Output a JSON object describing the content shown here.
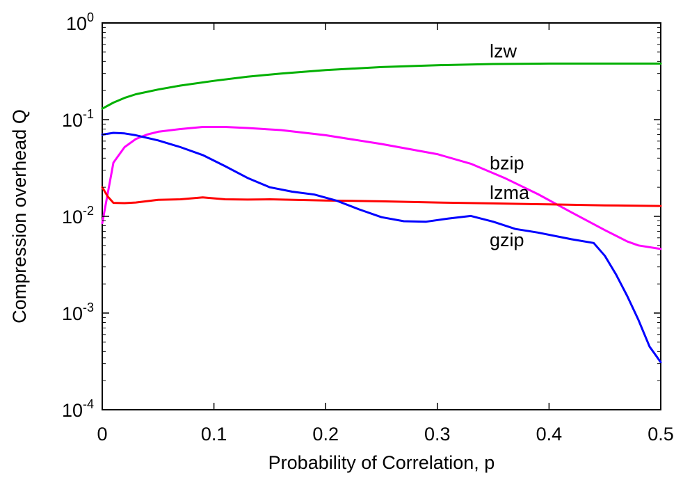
{
  "chart_data": {
    "type": "line",
    "xlabel": "Probability of Correlation, p",
    "ylabel": "Compression overhead Q",
    "xlim": [
      0,
      0.5
    ],
    "ylim": [
      0.0001,
      1
    ],
    "yscale": "log",
    "grid": false,
    "legend": "none",
    "x_ticks": [
      "0",
      "0.1",
      "0.2",
      "0.3",
      "0.4",
      "0.5"
    ],
    "x_tick_values": [
      0,
      0.1,
      0.2,
      0.3,
      0.4,
      0.5
    ],
    "y_ticks": [
      {
        "base": "10",
        "exp": "-4"
      },
      {
        "base": "10",
        "exp": "-3"
      },
      {
        "base": "10",
        "exp": "-2"
      },
      {
        "base": "10",
        "exp": "-1"
      },
      {
        "base": "10",
        "exp": "0"
      }
    ],
    "y_tick_values": [
      0.0001,
      0.001,
      0.01,
      0.1,
      1
    ],
    "series": [
      {
        "name": "lzw",
        "color": "#00b000",
        "x": [
          0,
          0.01,
          0.02,
          0.03,
          0.05,
          0.07,
          0.1,
          0.13,
          0.16,
          0.2,
          0.25,
          0.3,
          0.35,
          0.4,
          0.45,
          0.5
        ],
        "y": [
          0.13,
          0.15,
          0.168,
          0.183,
          0.205,
          0.225,
          0.252,
          0.278,
          0.3,
          0.326,
          0.35,
          0.366,
          0.376,
          0.38,
          0.38,
          0.38
        ]
      },
      {
        "name": "bzip",
        "color": "#ff00ff",
        "x": [
          0,
          0.01,
          0.02,
          0.03,
          0.04,
          0.05,
          0.07,
          0.09,
          0.11,
          0.13,
          0.16,
          0.2,
          0.25,
          0.3,
          0.33,
          0.36,
          0.39,
          0.42,
          0.45,
          0.47,
          0.48,
          0.5
        ],
        "y": [
          0.0085,
          0.036,
          0.052,
          0.063,
          0.07,
          0.075,
          0.08,
          0.084,
          0.084,
          0.082,
          0.078,
          0.069,
          0.056,
          0.044,
          0.035,
          0.025,
          0.017,
          0.011,
          0.0072,
          0.0055,
          0.005,
          0.0046
        ]
      },
      {
        "name": "lzma",
        "color": "#ff0000",
        "x": [
          0,
          0.005,
          0.01,
          0.02,
          0.03,
          0.05,
          0.07,
          0.09,
          0.11,
          0.13,
          0.15,
          0.2,
          0.25,
          0.3,
          0.35,
          0.4,
          0.45,
          0.5
        ],
        "y": [
          0.02,
          0.016,
          0.0138,
          0.0137,
          0.0139,
          0.0148,
          0.015,
          0.0157,
          0.015,
          0.0149,
          0.015,
          0.0146,
          0.0143,
          0.0139,
          0.0136,
          0.0133,
          0.013,
          0.0128
        ]
      },
      {
        "name": "gzip",
        "color": "#0000ff",
        "x": [
          0,
          0.01,
          0.02,
          0.03,
          0.05,
          0.07,
          0.09,
          0.11,
          0.13,
          0.15,
          0.17,
          0.19,
          0.21,
          0.23,
          0.25,
          0.27,
          0.29,
          0.31,
          0.33,
          0.35,
          0.37,
          0.39,
          0.42,
          0.44,
          0.45,
          0.46,
          0.47,
          0.48,
          0.49,
          0.5
        ],
        "y": [
          0.07,
          0.073,
          0.072,
          0.069,
          0.061,
          0.052,
          0.043,
          0.033,
          0.025,
          0.02,
          0.018,
          0.0168,
          0.0145,
          0.0118,
          0.0098,
          0.0089,
          0.0088,
          0.0095,
          0.0101,
          0.0088,
          0.0074,
          0.0068,
          0.0058,
          0.0053,
          0.0039,
          0.0025,
          0.0015,
          0.00085,
          0.00045,
          0.00031
        ]
      }
    ],
    "annotations": [
      {
        "text": "lzw",
        "x": 0.33,
        "y": 0.52
      },
      {
        "text": "bzip",
        "x": 0.33,
        "y": 0.036
      },
      {
        "text": "lzma",
        "x": 0.33,
        "y": 0.0178
      },
      {
        "text": "gzip",
        "x": 0.33,
        "y": 0.0058
      }
    ]
  }
}
